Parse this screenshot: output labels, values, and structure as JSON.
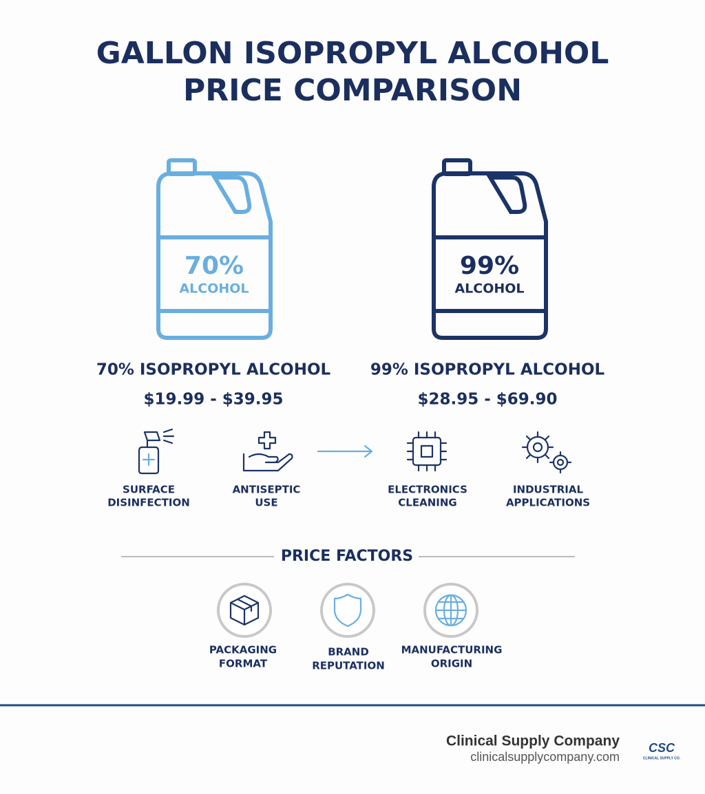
{
  "header": {
    "title_lines": [
      "GALLON ISOPROPYL ALCOHOL",
      "PRICE COMPARISON"
    ]
  },
  "products": [
    {
      "jug_percent": "70%",
      "jug_label": "ALCOHOL",
      "name": "70% ISOPROPYL ALCOHOL",
      "price": "$19.99 - $39.95",
      "uses": [
        [
          "SURFACE",
          "DISINFECTION"
        ],
        [
          "ANTISEPTIC",
          "USE"
        ]
      ]
    },
    {
      "jug_percent": "99%",
      "jug_label": "ALCOHOL",
      "name": "99% ISOPROPYL ALCOHOL",
      "price": "$28.95 - $69.90",
      "uses": [
        [
          "ELECTRONICS",
          "CLEANING"
        ],
        [
          "INDUSTRIAL",
          "APPLICATIONS"
        ]
      ]
    }
  ],
  "price_factors": {
    "heading": "PRICE FACTORS",
    "items": [
      [
        "PACKAGING",
        "FORMAT"
      ],
      [
        "BRAND",
        "REPUTATION"
      ],
      [
        "MANUFACTURING",
        "ORIGIN"
      ]
    ]
  },
  "footer": {
    "company": "Clinical Supply Company",
    "url": "clinicalsupplycompany.com",
    "logo": "CSC",
    "logo_caption": "CLINICAL SUPPLY CO."
  }
}
